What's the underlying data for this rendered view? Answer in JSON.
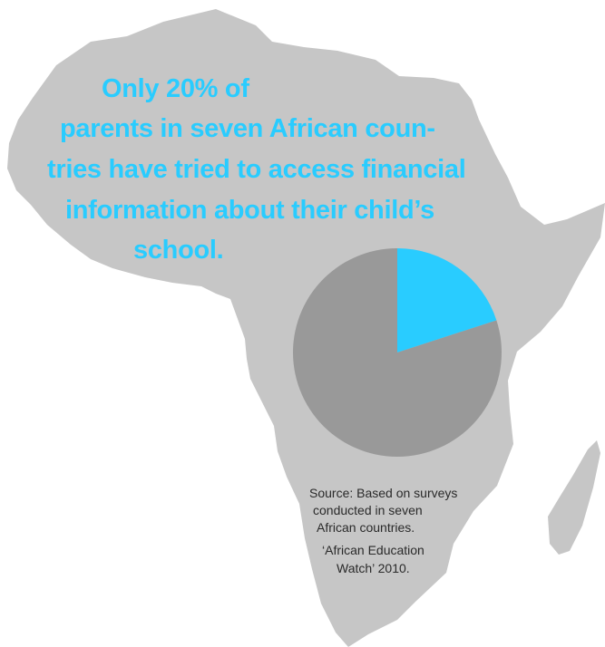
{
  "colors": {
    "continent": "#c6c6c6",
    "accent": "#29ccff",
    "pie_rest": "#999999",
    "source_text": "#2a2a2a"
  },
  "headline": {
    "line1": "Only 20% of",
    "line2": "parents in seven African coun-",
    "line3": "tries have tried to access financial",
    "line4": "information about their child’s",
    "line5": "school."
  },
  "source": {
    "line1": "Source: Based on surveys",
    "line2": "conducted in seven",
    "line3": "African countries.",
    "line4": "‘African Education",
    "line5": "Watch’ 2010."
  },
  "chart_data": {
    "type": "pie",
    "title": "",
    "slices": [
      {
        "label": "",
        "value": 20,
        "color": "#29ccff"
      },
      {
        "label": "",
        "value": 80,
        "color": "#999999"
      }
    ]
  }
}
